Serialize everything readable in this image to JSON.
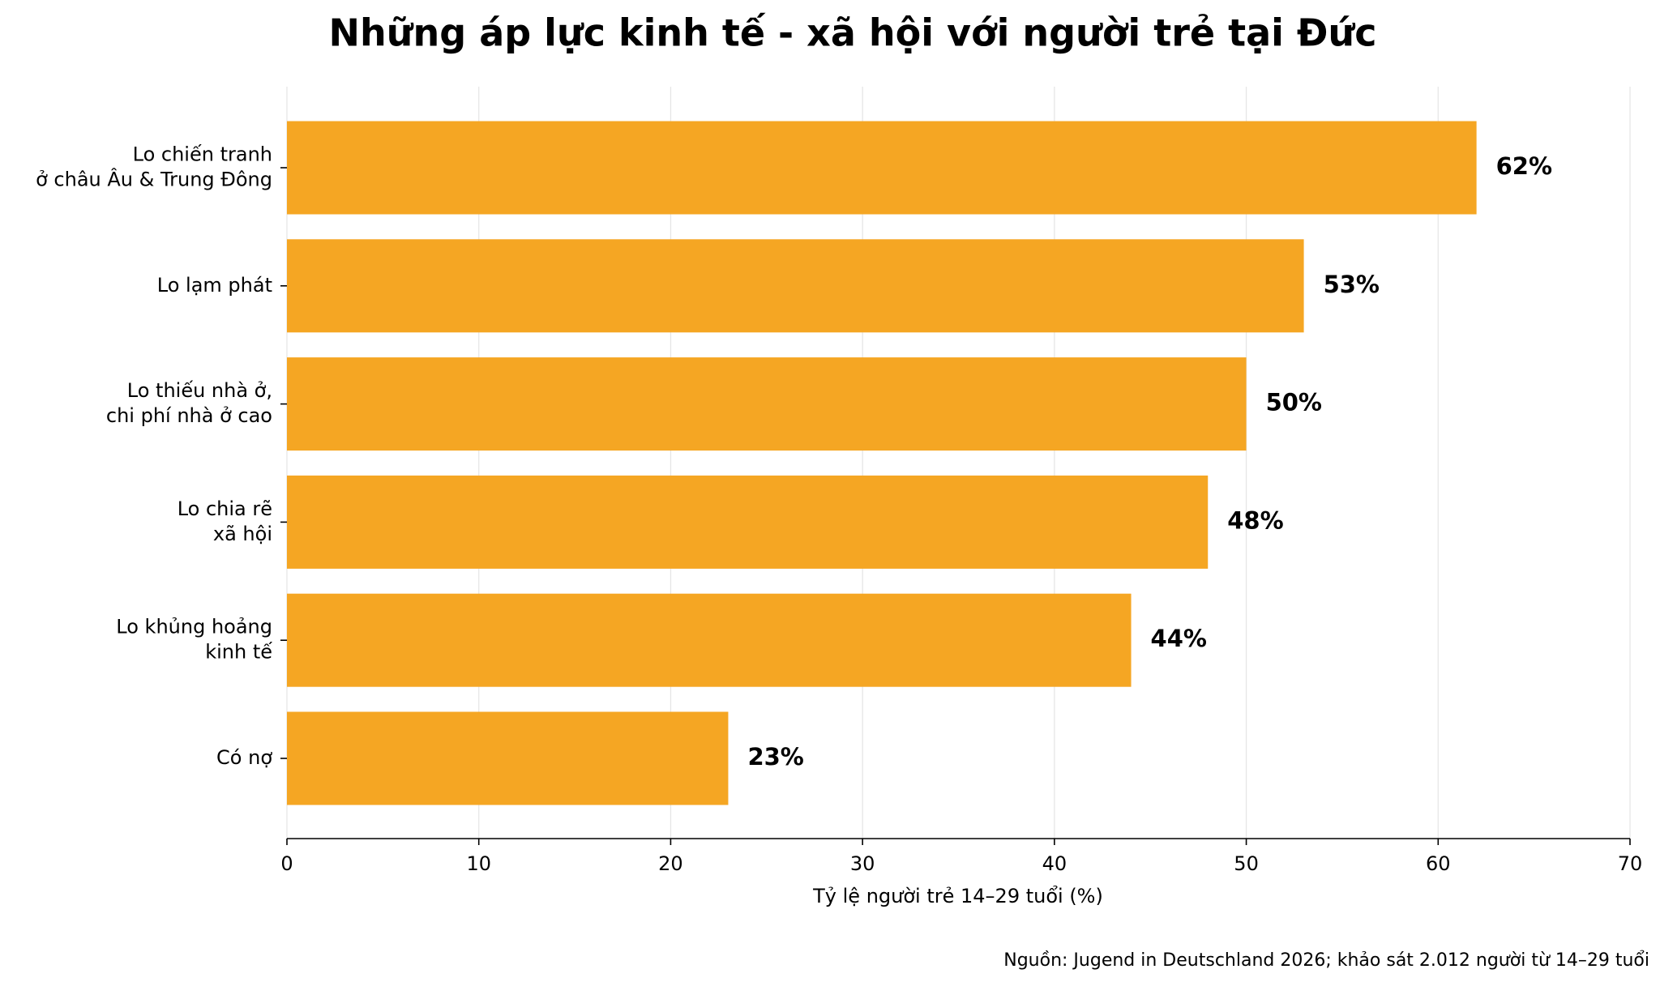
{
  "chart_data": {
    "type": "barh",
    "title": "Những áp lực kinh tế - xã hội với người trẻ tại Đức",
    "categories": [
      "Lo chiến tranh\nở châu Âu & Trung Đông",
      "Lo lạm phát",
      "Lo thiếu nhà ở,\nchi phí nhà ở cao",
      "Lo chia rẽ\nxã hội",
      "Lo khủng hoảng\nkinh tế",
      "Có nợ"
    ],
    "values": [
      62,
      53,
      50,
      48,
      44,
      23
    ],
    "value_labels": [
      "62%",
      "53%",
      "50%",
      "48%",
      "44%",
      "23%"
    ],
    "color": "#f5a623",
    "xlim": [
      0,
      70
    ],
    "xticks": [
      0,
      10,
      20,
      30,
      40,
      50,
      60,
      70
    ],
    "xlabel": "Tỷ lệ người trẻ 14–29 tuổi (%)",
    "grid": true,
    "source": "Nguồn: Jugend in Deutschland 2026; khảo sát 2.012 người từ 14–29 tuổi"
  }
}
